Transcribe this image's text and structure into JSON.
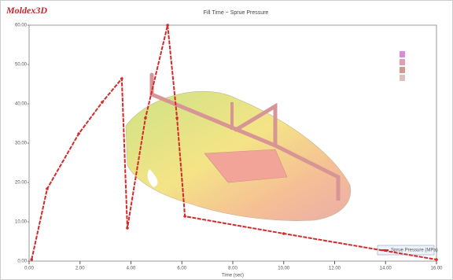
{
  "brand": "Moldex3D",
  "chart_data": {
    "type": "line",
    "title": "Fill Time ~ Sprue Pressure",
    "x_label": "Time (sec)",
    "x": [
      0.1,
      0.71,
      1.95,
      2.87,
      3.64,
      3.86,
      4.57,
      5.44,
      5.81,
      6.12,
      10.0,
      16.0
    ],
    "series": [
      {
        "name": "Sprue Pressure (MPa)",
        "color": "#d42a2a",
        "values": [
          0.4,
          18.4,
          32.4,
          40.4,
          46.4,
          8.4,
          36.4,
          60,
          36.4,
          11.4,
          7.0,
          0.4
        ]
      }
    ],
    "xlim": [
      0,
      16
    ],
    "ylim": [
      0,
      60
    ],
    "xticks": [
      {
        "value": 0,
        "label": "0.00"
      },
      {
        "value": 2,
        "label": "2.00"
      },
      {
        "value": 4,
        "label": "4.00"
      },
      {
        "value": 6,
        "label": "6.00"
      },
      {
        "value": 8,
        "label": "8.00"
      },
      {
        "value": 10,
        "label": "10.00"
      },
      {
        "value": 12,
        "label": "12.00"
      },
      {
        "value": 14,
        "label": "14.00"
      },
      {
        "value": 16,
        "label": "16.00"
      }
    ],
    "yticks": [
      {
        "value": 0,
        "label": "0.00"
      },
      {
        "value": 10,
        "label": "10.00"
      },
      {
        "value": 20,
        "label": "20.00"
      },
      {
        "value": 30,
        "label": "30.00"
      },
      {
        "value": 40,
        "label": "40.00"
      },
      {
        "value": 50,
        "label": "50.00"
      },
      {
        "value": 60,
        "label": "60.00"
      }
    ],
    "legend": "lower right"
  }
}
